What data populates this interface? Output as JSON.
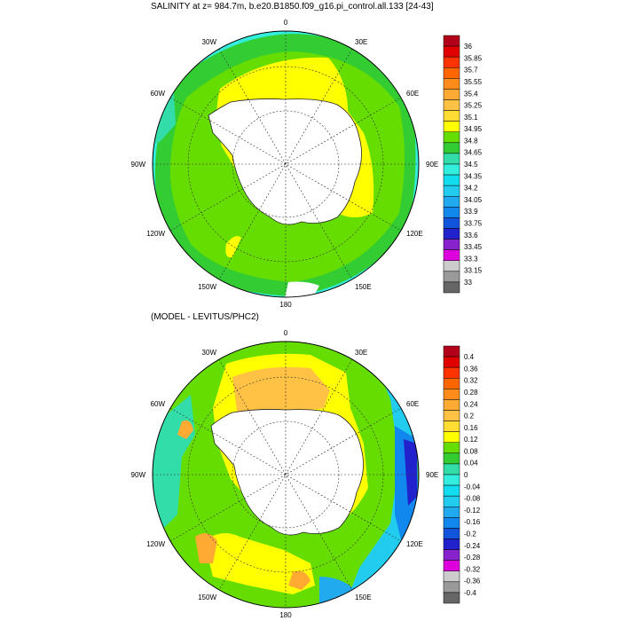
{
  "panel_top": {
    "title": "SALINITY at z= 984.7m, b.e20.B1850.f09_g16.pi_control.all.133 [24-43]",
    "lon_labels": {
      "n": "0",
      "nne": "30E",
      "ene": "60E",
      "e": "90E",
      "ese": "120E",
      "sse": "150E",
      "s": "180",
      "ssw": "150W",
      "wsw": "120W",
      "w": "90W",
      "wnw": "60W",
      "nnw": "30W"
    },
    "colorbar": {
      "colors": [
        "#b2001a",
        "#e00000",
        "#ff3300",
        "#ff6600",
        "#ff8c1a",
        "#ffaa33",
        "#ffc244",
        "#ffdd33",
        "#ffff00",
        "#66dd00",
        "#33cc33",
        "#33ddaa",
        "#33eedd",
        "#11ddee",
        "#22ccee",
        "#22aaee",
        "#1188ee",
        "#1155dd",
        "#2222cc",
        "#8822cc",
        "#dd00dd",
        "#cccccc",
        "#9a9a9a",
        "#666666"
      ],
      "labels": [
        "36",
        "35.85",
        "35.7",
        "35.55",
        "35.4",
        "35.25",
        "35.1",
        "34.95",
        "34.8",
        "34.65",
        "34.5",
        "34.35",
        "34.2",
        "34.05",
        "33.9",
        "33.75",
        "33.6",
        "33.45",
        "33.3",
        "33.15",
        "33"
      ]
    }
  },
  "panel_bottom": {
    "title": "(MODEL - LEVITUS/PHC2)",
    "lon_labels": {
      "n": "0",
      "nne": "30E",
      "ene": "60E",
      "e": "90E",
      "ese": "120E",
      "sse": "150E",
      "s": "180",
      "ssw": "150W",
      "wsw": "120W",
      "w": "90W",
      "wnw": "60W",
      "nnw": "30W"
    },
    "colorbar": {
      "colors": [
        "#b2001a",
        "#e00000",
        "#ff3300",
        "#ff6600",
        "#ff8c1a",
        "#ffaa33",
        "#ffc244",
        "#ffdd33",
        "#ffff00",
        "#66dd00",
        "#33cc33",
        "#33ddaa",
        "#33eedd",
        "#11ddee",
        "#22ccee",
        "#22aaee",
        "#1188ee",
        "#1155dd",
        "#2222cc",
        "#8822cc",
        "#dd00dd",
        "#cccccc",
        "#9a9a9a",
        "#666666"
      ],
      "labels": [
        "0.4",
        "0.36",
        "0.32",
        "0.28",
        "0.24",
        "0.2",
        "0.16",
        "0.12",
        "0.08",
        "0.04",
        "0",
        "-0.04",
        "-0.08",
        "-0.12",
        "-0.16",
        "-0.2",
        "-0.24",
        "-0.28",
        "-0.32",
        "-0.36",
        "-0.4"
      ]
    }
  }
}
